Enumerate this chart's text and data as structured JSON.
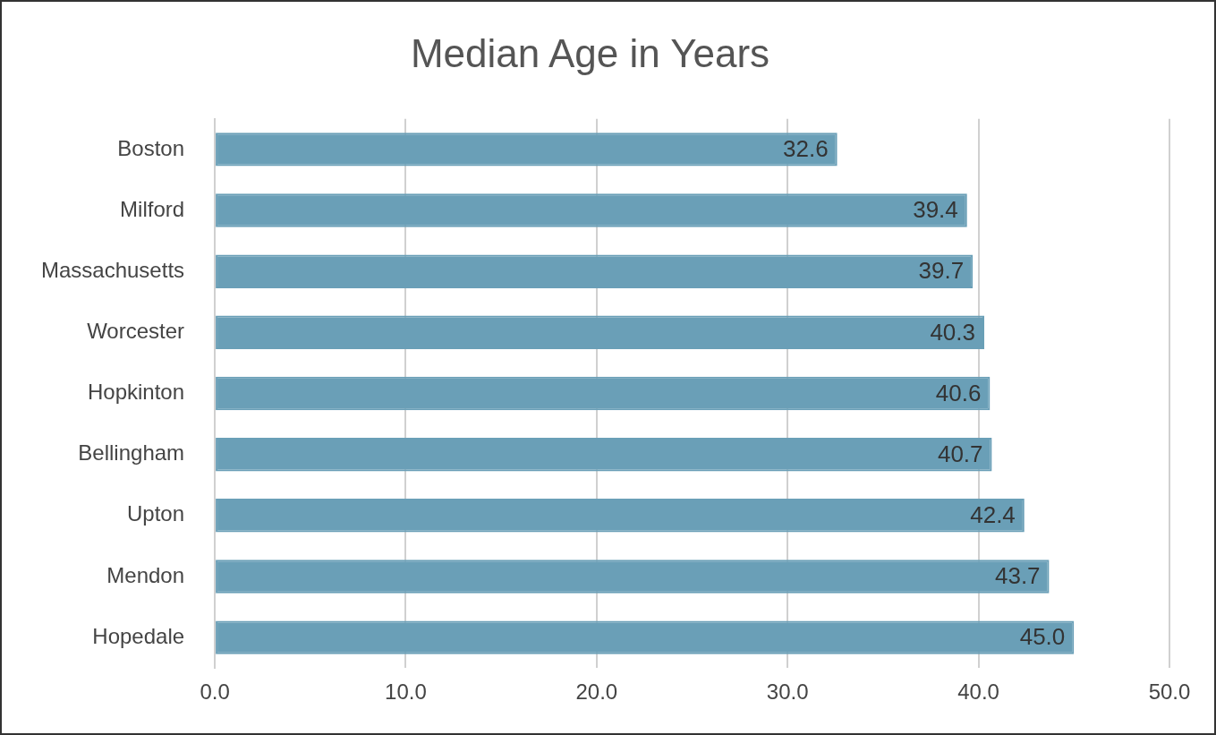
{
  "chart_data": {
    "type": "bar",
    "orientation": "horizontal",
    "title": "Median Age in Years",
    "categories": [
      "Boston",
      "Milford",
      "Massachusetts",
      "Worcester",
      "Hopkinton",
      "Bellingham",
      "Upton",
      "Mendon",
      "Hopedale"
    ],
    "values": [
      32.6,
      39.4,
      39.7,
      40.3,
      40.6,
      40.7,
      42.4,
      43.7,
      45.0
    ],
    "value_labels": [
      "32.6",
      "39.4",
      "39.7",
      "40.3",
      "40.6",
      "40.7",
      "42.4",
      "43.7",
      "45.0"
    ],
    "color": "#6a9fb7",
    "xlim": [
      0,
      50
    ],
    "xticks": [
      {
        "value": 0,
        "label": "0.0"
      },
      {
        "value": 10,
        "label": "10.0"
      },
      {
        "value": 20,
        "label": "20.0"
      },
      {
        "value": 30,
        "label": "30.0"
      },
      {
        "value": 40,
        "label": "40.0"
      },
      {
        "value": 50,
        "label": "50.0"
      }
    ],
    "grid": "x",
    "legend": false
  }
}
